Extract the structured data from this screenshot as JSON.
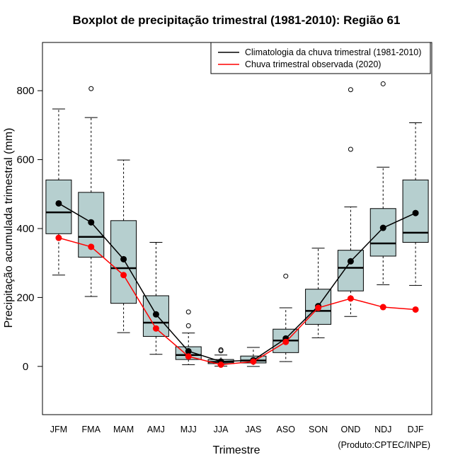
{
  "chart_data": {
    "type": "boxplot",
    "title": "Boxplot de precipitação trimestral (1981-2010): Região 61",
    "xlabel": "Trimestre",
    "ylabel": "Precipitação acumulada trimestral (mm)",
    "credit": "(Produto:CPTEC/INPE)",
    "ylim": [
      -140,
      940
    ],
    "yticks": [
      0,
      200,
      400,
      600,
      800
    ],
    "categories": [
      "JFM",
      "FMA",
      "MAM",
      "AMJ",
      "MJJ",
      "JJA",
      "JAS",
      "ASO",
      "SON",
      "OND",
      "NDJ",
      "DJF"
    ],
    "boxes": [
      {
        "whisker_low": 265,
        "q1": 385,
        "median": 447,
        "q3": 541,
        "whisker_high": 747,
        "outliers": []
      },
      {
        "whisker_low": 203,
        "q1": 317,
        "median": 376,
        "q3": 505,
        "whisker_high": 722,
        "outliers": [
          806
        ]
      },
      {
        "whisker_low": 98,
        "q1": 183,
        "median": 285,
        "q3": 423,
        "whisker_high": 599,
        "outliers": []
      },
      {
        "whisker_low": 35,
        "q1": 87,
        "median": 127,
        "q3": 205,
        "whisker_high": 360,
        "outliers": []
      },
      {
        "whisker_low": 5,
        "q1": 20,
        "median": 33,
        "q3": 57,
        "whisker_high": 97,
        "outliers": [
          118,
          158
        ]
      },
      {
        "whisker_low": 1,
        "q1": 8,
        "median": 13,
        "q3": 20,
        "whisker_high": 33,
        "outliers": [
          45,
          48
        ]
      },
      {
        "whisker_low": 0,
        "q1": 10,
        "median": 17,
        "q3": 30,
        "whisker_high": 55,
        "outliers": []
      },
      {
        "whisker_low": 14,
        "q1": 40,
        "median": 75,
        "q3": 108,
        "whisker_high": 170,
        "outliers": [
          262
        ]
      },
      {
        "whisker_low": 83,
        "q1": 122,
        "median": 161,
        "q3": 224,
        "whisker_high": 343,
        "outliers": []
      },
      {
        "whisker_low": 145,
        "q1": 219,
        "median": 286,
        "q3": 337,
        "whisker_high": 463,
        "outliers": [
          630,
          803
        ]
      },
      {
        "whisker_low": 237,
        "q1": 320,
        "median": 357,
        "q3": 458,
        "whisker_high": 578,
        "outliers": [
          820
        ]
      },
      {
        "whisker_low": 235,
        "q1": 360,
        "median": 388,
        "q3": 541,
        "whisker_high": 707,
        "outliers": []
      }
    ],
    "series": [
      {
        "name": "Climatologia da chuva trimestral (1981-2010)",
        "color": "#000000",
        "values": [
          473,
          418,
          311,
          151,
          44,
          14,
          18,
          81,
          175,
          305,
          402,
          445
        ]
      },
      {
        "name": "Chuva trimestral observada (2020)",
        "color": "#ff0000",
        "values": [
          373,
          347,
          265,
          110,
          29,
          5,
          14,
          71,
          170,
          197,
          172,
          165
        ]
      }
    ],
    "legend_position": "top-right",
    "box_fill": "#b6cfcf"
  }
}
